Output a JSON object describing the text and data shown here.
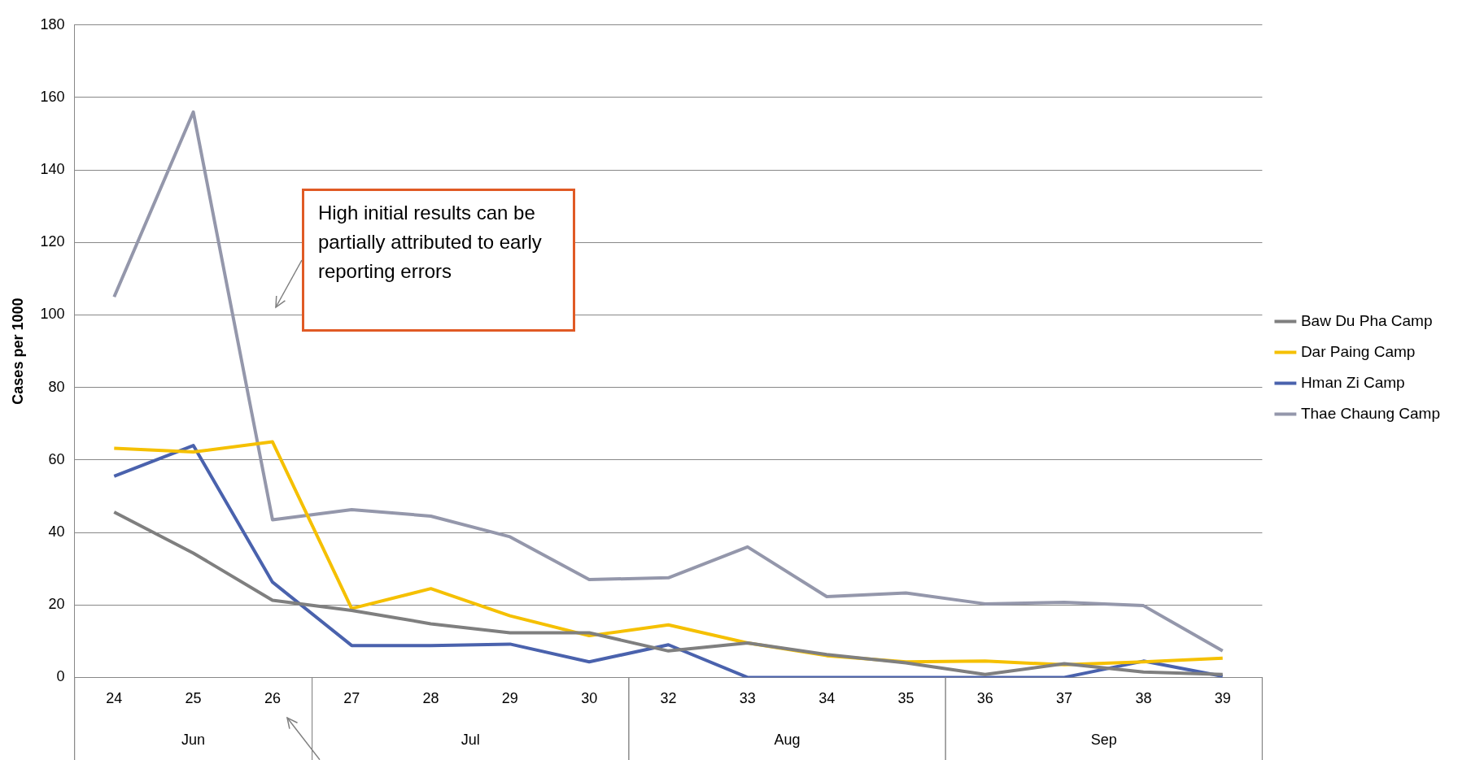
{
  "chart_data": {
    "type": "line",
    "ylabel": "Cases per 1000",
    "categories": [
      "24",
      "25",
      "26",
      "27",
      "28",
      "29",
      "30",
      "32",
      "33",
      "34",
      "35",
      "36",
      "37",
      "38",
      "39"
    ],
    "series": [
      {
        "name": "Baw Du Pha Camp",
        "color": "#7f7f7f",
        "values": [
          45.6,
          34.3,
          21.3,
          18.5,
          14.8,
          12.3,
          12.3,
          7.3,
          9.5,
          6.3,
          4,
          0.8,
          3.8,
          1.5,
          0.8
        ]
      },
      {
        "name": "Dar Paing Camp",
        "color": "#f5c000",
        "values": [
          63.2,
          62.2,
          65,
          19,
          24.5,
          17,
          11.5,
          14.5,
          9.5,
          6,
          4.3,
          4.5,
          3.5,
          4.3,
          5.3
        ]
      },
      {
        "name": "Hman Zi Camp",
        "color": "#4a62ad",
        "values": [
          55.5,
          64,
          26.3,
          8.8,
          8.8,
          9.2,
          4.3,
          9,
          0,
          0,
          0,
          0,
          0,
          4.5,
          0.3
        ]
      },
      {
        "name": "Thae Chaung Camp",
        "color": "#9497ab",
        "values": [
          105,
          156,
          43.5,
          46.3,
          44.5,
          38.8,
          27,
          27.5,
          36,
          22.3,
          23.3,
          20.3,
          20.7,
          19.8,
          7.3
        ]
      }
    ],
    "ylim": [
      0,
      180
    ],
    "yticks": [
      0,
      20,
      40,
      60,
      80,
      100,
      120,
      140,
      160,
      180
    ],
    "grid": "y",
    "legend": "right",
    "marker": "none",
    "line_style": "solid",
    "annotations": [
      "High initial results can be partially attributed to early reporting errors",
      "Jun",
      "Jul",
      "Aug",
      "Sep"
    ]
  }
}
